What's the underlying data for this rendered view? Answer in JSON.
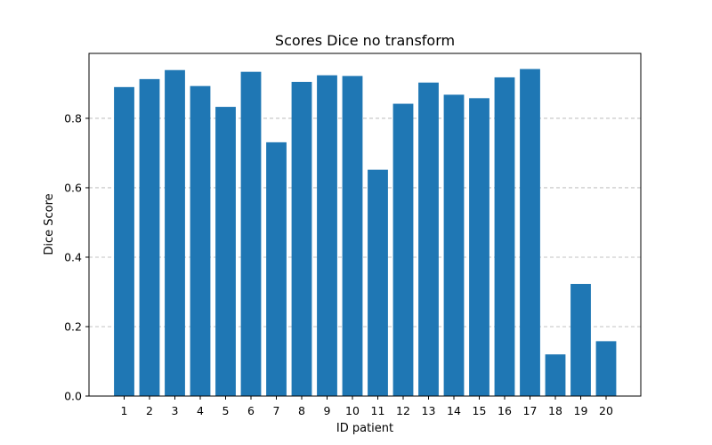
{
  "chart_data": {
    "type": "bar",
    "title": "Scores Dice no transform",
    "xlabel": "ID patient",
    "ylabel": "Dice Score",
    "categories": [
      "1",
      "2",
      "3",
      "4",
      "5",
      "6",
      "7",
      "8",
      "9",
      "10",
      "11",
      "12",
      "13",
      "14",
      "15",
      "16",
      "17",
      "18",
      "19",
      "20"
    ],
    "values": [
      0.89,
      0.913,
      0.939,
      0.893,
      0.833,
      0.934,
      0.731,
      0.905,
      0.924,
      0.922,
      0.652,
      0.842,
      0.903,
      0.868,
      0.858,
      0.918,
      0.942,
      0.12,
      0.323,
      0.158
    ],
    "ylim": [
      0,
      0.987
    ],
    "yticks": [
      "0.0",
      "0.2",
      "0.4",
      "0.6",
      "0.8"
    ],
    "grid": "y-dashed",
    "bar_color": "#1f77b4"
  }
}
